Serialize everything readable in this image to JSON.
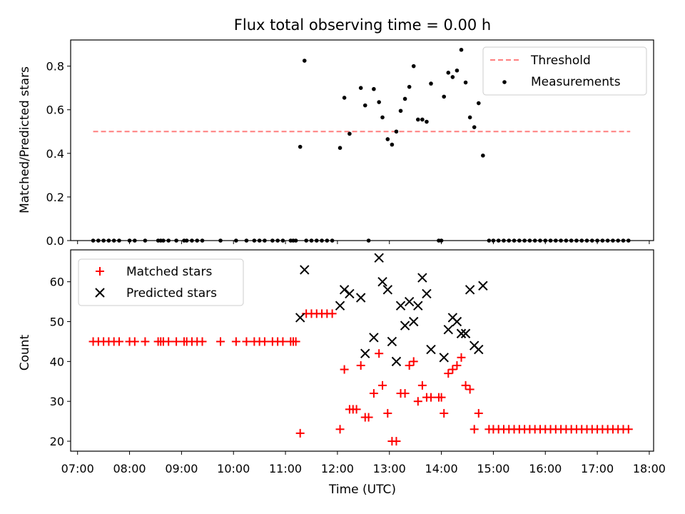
{
  "chart_data": [
    {
      "type": "scatter",
      "title": "Flux total observing time = 0.00 h",
      "xlabel": "",
      "ylabel": "Matched/Predicted stars",
      "ylim": [
        0.0,
        0.92
      ],
      "yticks": [
        "0.0",
        "0.2",
        "0.4",
        "0.6",
        "0.8"
      ],
      "xlim": [
        "06:52",
        "18:05"
      ],
      "legend": "top-right",
      "legend_entries": [
        "Threshold",
        "Measurements"
      ],
      "threshold": {
        "name": "Threshold",
        "value": 0.5,
        "x_start": "07:18",
        "x_end": "17:38",
        "color": "#ff7f7f"
      },
      "series": [
        {
          "name": "Measurements",
          "color": "#000000",
          "points": [
            [
              "07:18",
              0
            ],
            [
              "07:24",
              0
            ],
            [
              "07:30",
              0
            ],
            [
              "07:36",
              0
            ],
            [
              "07:42",
              0
            ],
            [
              "07:48",
              0
            ],
            [
              "08:00",
              0
            ],
            [
              "08:06",
              0
            ],
            [
              "08:18",
              0
            ],
            [
              "08:33",
              0
            ],
            [
              "08:36",
              0
            ],
            [
              "08:39",
              0
            ],
            [
              "08:45",
              0
            ],
            [
              "08:54",
              0
            ],
            [
              "09:03",
              0
            ],
            [
              "09:06",
              0
            ],
            [
              "09:12",
              0
            ],
            [
              "09:18",
              0
            ],
            [
              "09:24",
              0
            ],
            [
              "09:45",
              0
            ],
            [
              "10:03",
              0
            ],
            [
              "10:15",
              0
            ],
            [
              "10:24",
              0
            ],
            [
              "10:30",
              0
            ],
            [
              "10:36",
              0
            ],
            [
              "10:45",
              0
            ],
            [
              "10:51",
              0
            ],
            [
              "10:57",
              0
            ],
            [
              "11:06",
              0
            ],
            [
              "11:09",
              0
            ],
            [
              "11:12",
              0
            ],
            [
              "11:24",
              0
            ],
            [
              "11:30",
              0
            ],
            [
              "11:36",
              0
            ],
            [
              "11:42",
              0
            ],
            [
              "11:48",
              0
            ],
            [
              "11:54",
              0
            ],
            [
              "12:36",
              0
            ],
            [
              "13:57",
              0
            ],
            [
              "14:00",
              0
            ],
            [
              "14:55",
              0
            ],
            [
              "15:00",
              0
            ],
            [
              "15:06",
              0
            ],
            [
              "15:12",
              0
            ],
            [
              "15:18",
              0
            ],
            [
              "15:24",
              0
            ],
            [
              "15:30",
              0
            ],
            [
              "15:36",
              0
            ],
            [
              "15:42",
              0
            ],
            [
              "15:48",
              0
            ],
            [
              "15:54",
              0
            ],
            [
              "16:00",
              0
            ],
            [
              "16:06",
              0
            ],
            [
              "16:12",
              0
            ],
            [
              "16:18",
              0
            ],
            [
              "16:24",
              0
            ],
            [
              "16:30",
              0
            ],
            [
              "16:36",
              0
            ],
            [
              "16:42",
              0
            ],
            [
              "16:48",
              0
            ],
            [
              "16:54",
              0
            ],
            [
              "17:00",
              0
            ],
            [
              "17:06",
              0
            ],
            [
              "17:12",
              0
            ],
            [
              "17:18",
              0
            ],
            [
              "17:24",
              0
            ],
            [
              "17:30",
              0
            ],
            [
              "17:36",
              0
            ],
            [
              "11:17",
              0.43
            ],
            [
              "11:22",
              0.825
            ],
            [
              "12:03",
              0.425
            ],
            [
              "12:08",
              0.655
            ],
            [
              "12:14",
              0.49
            ],
            [
              "12:27",
              0.7
            ],
            [
              "12:32",
              0.62
            ],
            [
              "12:42",
              0.695
            ],
            [
              "12:48",
              0.635
            ],
            [
              "12:52",
              0.565
            ],
            [
              "12:58",
              0.465
            ],
            [
              "13:03",
              0.44
            ],
            [
              "13:08",
              0.5
            ],
            [
              "13:13",
              0.595
            ],
            [
              "13:18",
              0.65
            ],
            [
              "13:23",
              0.705
            ],
            [
              "13:28",
              0.8
            ],
            [
              "13:33",
              0.555
            ],
            [
              "13:38",
              0.555
            ],
            [
              "13:43",
              0.545
            ],
            [
              "13:48",
              0.72
            ],
            [
              "14:03",
              0.66
            ],
            [
              "14:08",
              0.77
            ],
            [
              "14:13",
              0.75
            ],
            [
              "14:18",
              0.78
            ],
            [
              "14:23",
              0.875
            ],
            [
              "14:28",
              0.725
            ],
            [
              "14:33",
              0.565
            ],
            [
              "14:38",
              0.52
            ],
            [
              "14:43",
              0.63
            ],
            [
              "14:48",
              0.39
            ]
          ]
        }
      ]
    },
    {
      "type": "scatter",
      "title": "",
      "xlabel": "Time (UTC)",
      "ylabel": "Count",
      "ylim": [
        17.5,
        68
      ],
      "yticks": [
        "20",
        "30",
        "40",
        "50",
        "60"
      ],
      "xlim": [
        "06:52",
        "18:05"
      ],
      "xticks": [
        "07:00",
        "08:00",
        "09:00",
        "10:00",
        "11:00",
        "12:00",
        "13:00",
        "14:00",
        "15:00",
        "16:00",
        "17:00",
        "18:00"
      ],
      "legend": "top-left",
      "legend_entries": [
        "Matched stars",
        "Predicted stars"
      ],
      "series": [
        {
          "name": "Matched stars",
          "marker": "plus",
          "color": "#ff0000",
          "points": [
            [
              "07:18",
              45
            ],
            [
              "07:24",
              45
            ],
            [
              "07:30",
              45
            ],
            [
              "07:36",
              45
            ],
            [
              "07:42",
              45
            ],
            [
              "07:48",
              45
            ],
            [
              "08:00",
              45
            ],
            [
              "08:06",
              45
            ],
            [
              "08:18",
              45
            ],
            [
              "08:33",
              45
            ],
            [
              "08:36",
              45
            ],
            [
              "08:39",
              45
            ],
            [
              "08:45",
              45
            ],
            [
              "08:54",
              45
            ],
            [
              "09:03",
              45
            ],
            [
              "09:06",
              45
            ],
            [
              "09:12",
              45
            ],
            [
              "09:18",
              45
            ],
            [
              "09:24",
              45
            ],
            [
              "09:45",
              45
            ],
            [
              "10:03",
              45
            ],
            [
              "10:15",
              45
            ],
            [
              "10:24",
              45
            ],
            [
              "10:30",
              45
            ],
            [
              "10:36",
              45
            ],
            [
              "10:45",
              45
            ],
            [
              "10:51",
              45
            ],
            [
              "10:57",
              45
            ],
            [
              "11:06",
              45
            ],
            [
              "11:09",
              45
            ],
            [
              "11:12",
              45
            ],
            [
              "11:24",
              52
            ],
            [
              "11:30",
              52
            ],
            [
              "11:36",
              52
            ],
            [
              "11:42",
              52
            ],
            [
              "11:48",
              52
            ],
            [
              "11:54",
              52
            ],
            [
              "12:36",
              26
            ],
            [
              "13:57",
              31
            ],
            [
              "14:00",
              31
            ],
            [
              "14:55",
              23
            ],
            [
              "15:00",
              23
            ],
            [
              "15:06",
              23
            ],
            [
              "15:12",
              23
            ],
            [
              "15:18",
              23
            ],
            [
              "15:24",
              23
            ],
            [
              "15:30",
              23
            ],
            [
              "15:36",
              23
            ],
            [
              "15:42",
              23
            ],
            [
              "15:48",
              23
            ],
            [
              "15:54",
              23
            ],
            [
              "16:00",
              23
            ],
            [
              "16:06",
              23
            ],
            [
              "16:12",
              23
            ],
            [
              "16:18",
              23
            ],
            [
              "16:24",
              23
            ],
            [
              "16:30",
              23
            ],
            [
              "16:36",
              23
            ],
            [
              "16:42",
              23
            ],
            [
              "16:48",
              23
            ],
            [
              "16:54",
              23
            ],
            [
              "17:00",
              23
            ],
            [
              "17:06",
              23
            ],
            [
              "17:12",
              23
            ],
            [
              "17:18",
              23
            ],
            [
              "17:24",
              23
            ],
            [
              "17:30",
              23
            ],
            [
              "17:36",
              23
            ],
            [
              "11:17",
              22
            ],
            [
              "12:03",
              23
            ],
            [
              "12:08",
              38
            ],
            [
              "12:14",
              28
            ],
            [
              "12:18",
              28
            ],
            [
              "12:22",
              28
            ],
            [
              "12:27",
              39
            ],
            [
              "12:32",
              26
            ],
            [
              "12:42",
              32
            ],
            [
              "12:48",
              42
            ],
            [
              "12:52",
              34
            ],
            [
              "12:58",
              27
            ],
            [
              "13:03",
              20
            ],
            [
              "13:08",
              20
            ],
            [
              "13:13",
              32
            ],
            [
              "13:18",
              32
            ],
            [
              "13:23",
              39
            ],
            [
              "13:28",
              40
            ],
            [
              "13:33",
              30
            ],
            [
              "13:38",
              34
            ],
            [
              "13:43",
              31
            ],
            [
              "13:48",
              31
            ],
            [
              "14:03",
              27
            ],
            [
              "14:08",
              37
            ],
            [
              "14:13",
              38
            ],
            [
              "14:18",
              39
            ],
            [
              "14:23",
              41
            ],
            [
              "14:28",
              34
            ],
            [
              "14:33",
              33
            ],
            [
              "14:38",
              23
            ],
            [
              "14:43",
              27
            ]
          ]
        },
        {
          "name": "Predicted stars",
          "marker": "x",
          "color": "#000000",
          "points": [
            [
              "11:17",
              51
            ],
            [
              "11:22",
              63
            ],
            [
              "12:03",
              54
            ],
            [
              "12:08",
              58
            ],
            [
              "12:14",
              57
            ],
            [
              "12:27",
              56
            ],
            [
              "12:32",
              42
            ],
            [
              "12:42",
              46
            ],
            [
              "12:48",
              66
            ],
            [
              "12:52",
              60
            ],
            [
              "12:58",
              58
            ],
            [
              "13:03",
              45
            ],
            [
              "13:08",
              40
            ],
            [
              "13:13",
              54
            ],
            [
              "13:18",
              49
            ],
            [
              "13:23",
              55
            ],
            [
              "13:28",
              50
            ],
            [
              "13:33",
              54
            ],
            [
              "13:38",
              61
            ],
            [
              "13:43",
              57
            ],
            [
              "13:48",
              43
            ],
            [
              "14:03",
              41
            ],
            [
              "14:08",
              48
            ],
            [
              "14:13",
              51
            ],
            [
              "14:18",
              50
            ],
            [
              "14:23",
              47
            ],
            [
              "14:28",
              47
            ],
            [
              "14:33",
              58
            ],
            [
              "14:38",
              44
            ],
            [
              "14:43",
              43
            ],
            [
              "14:48",
              59
            ]
          ]
        }
      ]
    }
  ]
}
